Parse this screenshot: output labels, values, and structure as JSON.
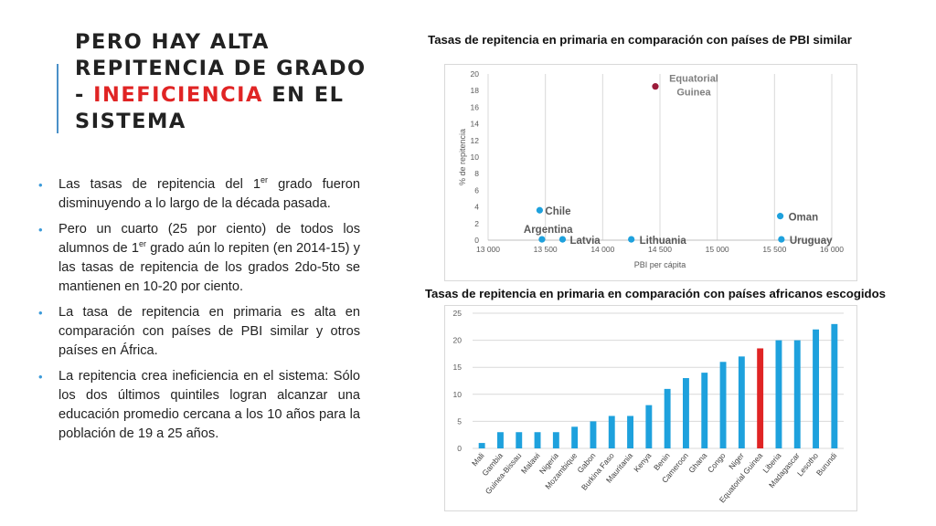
{
  "slide": {
    "title_part1": "PERO HAY ALTA REPITENCIA DE GRADO - ",
    "title_highlight": "INEFICIENCIA",
    "title_part2": " EN EL SISTEMA",
    "accent_color": "#e02424",
    "bullet_color": "#3b9ad9",
    "bullets": [
      {
        "pre": "Las tasas de repitencia del 1",
        "sup": "er",
        "post": " grado fueron disminuyendo a lo largo de la década pasada."
      },
      {
        "pre": "Pero un cuarto (25 por ciento) de todos los alumnos de 1",
        "sup": "er",
        "post": " grado aún lo repiten (en 2014-15) y las tasas de repitencia de los grados 2do-5to se mantienen en 10-20 por ciento."
      },
      {
        "pre": "La tasa de repitencia en primaria es alta en comparación con países de PBI similar y otros países en África.",
        "sup": "",
        "post": ""
      },
      {
        "pre": "La repitencia crea ineficiencia en el sistema: Sólo los dos últimos quintiles logran alcanzar una educación promedio cercana a los 10 años para la población de 19 a 25 años.",
        "sup": "",
        "post": ""
      }
    ]
  },
  "chart_data": [
    {
      "type": "scatter",
      "title": "Tasas de repitencia en primaria en comparación con países de PBI similar",
      "xlabel": "PBI per cápita",
      "ylabel": "% de repitencia",
      "xlim": [
        13000,
        16000
      ],
      "ylim": [
        0,
        20
      ],
      "xticks": [
        13000,
        13500,
        14000,
        14500,
        15000,
        15500,
        16000
      ],
      "xtick_labels": [
        "13 000",
        "13 500",
        "14 000",
        "14 500",
        "15 000",
        "15 500",
        "16 000"
      ],
      "yticks": [
        0,
        2,
        4,
        6,
        8,
        10,
        12,
        14,
        16,
        18,
        20
      ],
      "grid": "vertical",
      "point_color": "#1ea1dd",
      "highlight_color": "#9b1b3a",
      "points": [
        {
          "label": "Equatorial Guinea",
          "x": 14460,
          "y": 18.5,
          "highlight": true
        },
        {
          "label": "Chile",
          "x": 13450,
          "y": 3.6
        },
        {
          "label": "Argentina",
          "x": 13470,
          "y": 0.1
        },
        {
          "label": "Latvia",
          "x": 13650,
          "y": 0.1
        },
        {
          "label": "Lithuania",
          "x": 14250,
          "y": 0.1
        },
        {
          "label": "Oman",
          "x": 15550,
          "y": 2.9
        },
        {
          "label": "Uruguay",
          "x": 15560,
          "y": 0.1
        }
      ]
    },
    {
      "type": "bar",
      "title": "Tasas de repitencia en primaria en comparación con países africanos escogidos",
      "ylim": [
        0,
        25
      ],
      "yticks": [
        0,
        5,
        10,
        15,
        20,
        25
      ],
      "grid": "horizontal",
      "bar_color": "#1ea1dd",
      "highlight_color": "#e02424",
      "highlight_category": "Equatorial Guinea",
      "categories": [
        "Mali",
        "Gambia",
        "Guinea-Bissau",
        "Malawi",
        "Nigeria",
        "Mozambique",
        "Gabon",
        "Burkina Faso",
        "Mauritania",
        "Kenya",
        "Benin",
        "Cameroon",
        "Ghana",
        "Congo",
        "Niger",
        "Equatorial Guinea",
        "Liberia",
        "Madagascar",
        "Lesotho",
        "Burundi"
      ],
      "values": [
        1,
        3,
        3,
        3,
        3,
        4,
        5,
        6,
        6,
        8,
        11,
        13,
        14,
        16,
        17,
        18.5,
        20,
        20,
        22,
        23
      ]
    }
  ]
}
